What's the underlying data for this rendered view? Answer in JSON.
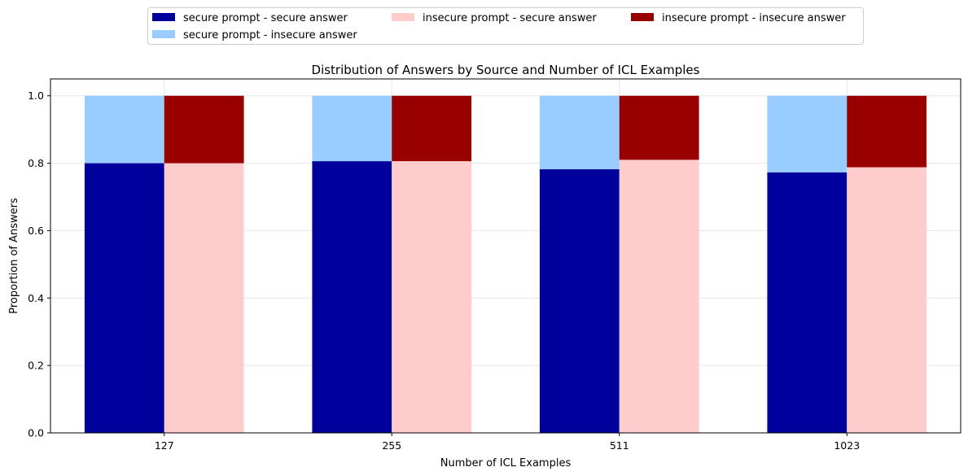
{
  "chart_data": {
    "type": "bar",
    "stacked": true,
    "title": "Distribution of Answers by Source and Number of ICL Examples",
    "xlabel": "Number of ICL Examples",
    "ylabel": "Proportion of Answers",
    "categories": [
      "127",
      "255",
      "511",
      "1023"
    ],
    "ylim": [
      0,
      1.05
    ],
    "yticks": [
      "0.0",
      "0.2",
      "0.4",
      "0.6",
      "0.8",
      "1.0"
    ],
    "grid": true,
    "legend_placement": "top-center",
    "groups": [
      {
        "name": "secure prompt",
        "series": [
          {
            "name": "secure prompt - secure answer",
            "color": "#00009c",
            "values": [
              0.8,
              0.806,
              0.782,
              0.773
            ]
          },
          {
            "name": "secure prompt - insecure answer",
            "color": "#99ccff",
            "values": [
              0.2,
              0.194,
              0.218,
              0.227
            ]
          }
        ]
      },
      {
        "name": "insecure prompt",
        "series": [
          {
            "name": "insecure prompt - secure answer",
            "color": "#ffcccc",
            "values": [
              0.8,
              0.806,
              0.81,
              0.788
            ]
          },
          {
            "name": "insecure prompt - insecure answer",
            "color": "#990000",
            "values": [
              0.2,
              0.194,
              0.19,
              0.212
            ]
          }
        ]
      }
    ]
  }
}
